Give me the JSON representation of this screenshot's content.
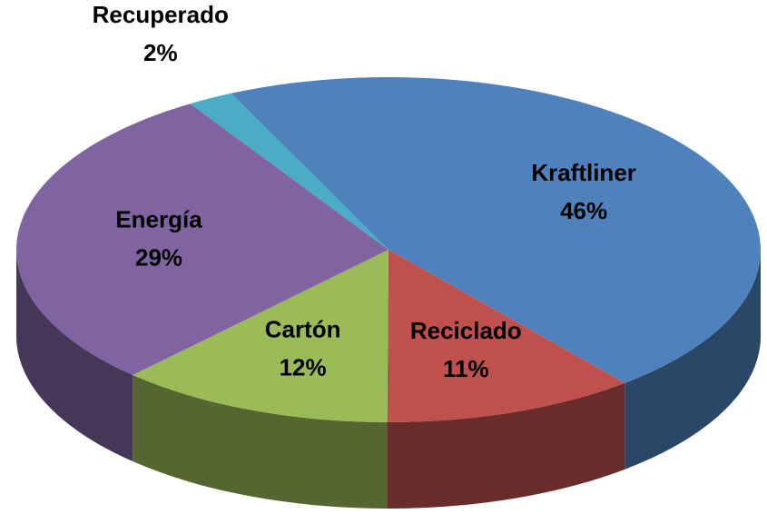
{
  "chart_data": {
    "type": "pie",
    "categories": [
      "Kraftliner",
      "Reciclado",
      "Cartón",
      "Energía",
      "Recuperado"
    ],
    "values": [
      46,
      11,
      12,
      29,
      2
    ],
    "value_labels": [
      "46%",
      "11%",
      "12%",
      "29%",
      "2%"
    ],
    "colors": [
      "#4f81bd",
      "#c0504d",
      "#9bbb59",
      "#8064a2",
      "#4bacc6"
    ]
  }
}
